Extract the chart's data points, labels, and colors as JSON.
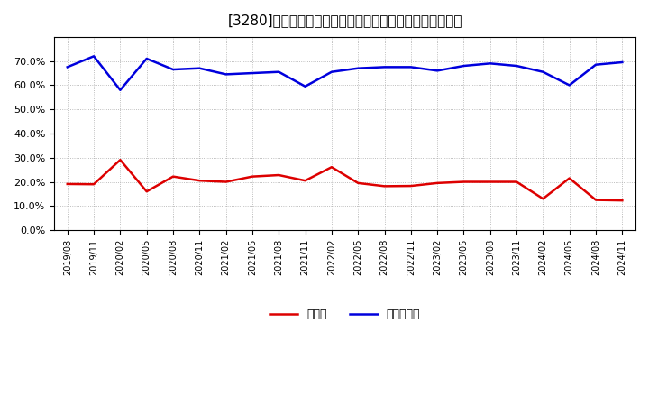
{
  "title": "[3280]　現預金、有利子負債の総資産に対する比率の推移",
  "x_labels": [
    "2019/08",
    "2019/11",
    "2020/02",
    "2020/05",
    "2020/08",
    "2020/11",
    "2021/02",
    "2021/05",
    "2021/08",
    "2021/11",
    "2022/02",
    "2022/05",
    "2022/08",
    "2022/11",
    "2023/02",
    "2023/05",
    "2023/08",
    "2023/11",
    "2024/02",
    "2024/05",
    "2024/08",
    "2024/11"
  ],
  "cash_ratio": [
    0.191,
    0.19,
    0.291,
    0.16,
    0.222,
    0.205,
    0.2,
    0.222,
    0.228,
    0.205,
    0.261,
    0.195,
    0.182,
    0.183,
    0.195,
    0.2,
    0.2,
    0.2,
    0.13,
    0.215,
    0.125,
    0.123
  ],
  "debt_ratio": [
    0.675,
    0.72,
    0.58,
    0.71,
    0.665,
    0.67,
    0.645,
    0.65,
    0.655,
    0.595,
    0.655,
    0.67,
    0.675,
    0.675,
    0.66,
    0.68,
    0.69,
    0.68,
    0.655,
    0.6,
    0.685,
    0.695
  ],
  "cash_color": "#dd0000",
  "debt_color": "#0000dd",
  "bg_color": "#ffffff",
  "grid_color": "#aaaaaa",
  "ylim": [
    0.0,
    0.8
  ],
  "yticks": [
    0.0,
    0.1,
    0.2,
    0.3,
    0.4,
    0.5,
    0.6,
    0.7
  ],
  "legend_cash": "現預金",
  "legend_debt": "有利子負債"
}
